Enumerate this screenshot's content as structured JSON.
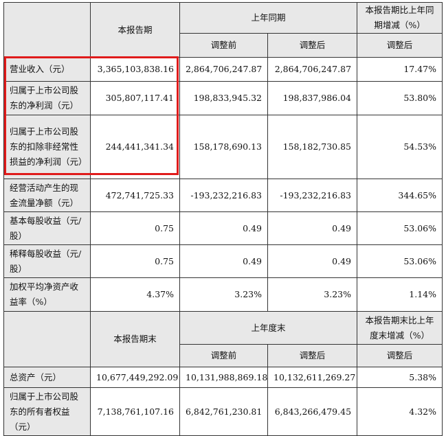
{
  "section1": {
    "headers": {
      "current": "本报告期",
      "prior_group": "上年同期",
      "change_group": "本报告期比上年同期增减（%）",
      "before_adj": "调整前",
      "after_adj": "调整后",
      "change_sub": "调整后"
    },
    "rows": [
      {
        "label": "营业收入（元）",
        "current": "3,365,103,838.16",
        "before": "2,864,706,247.87",
        "after": "2,864,706,247.87",
        "change": "17.47%"
      },
      {
        "label": "归属于上市公司股东的净利润（元）",
        "current": "305,807,117.41",
        "before": "198,833,945.32",
        "after": "198,837,986.04",
        "change": "53.80%"
      },
      {
        "label": "归属于上市公司股东的扣除非经常性损益的净利润（元）",
        "current": "244,441,341.34",
        "before": "158,178,690.13",
        "after": "158,182,730.85",
        "change": "54.53%"
      },
      {
        "label": "经营活动产生的现金流量净额（元）",
        "current": "472,741,725.33",
        "before": "-193,232,216.83",
        "after": "-193,232,216.83",
        "change": "344.65%"
      },
      {
        "label": "基本每股收益（元/股）",
        "current": "0.75",
        "before": "0.49",
        "after": "0.49",
        "change": "53.06%"
      },
      {
        "label": "稀释每股收益（元/股）",
        "current": "0.75",
        "before": "0.49",
        "after": "0.49",
        "change": "53.06%"
      },
      {
        "label": "加权平均净资产收益率（%）",
        "current": "4.37%",
        "before": "3.23%",
        "after": "3.23%",
        "change": "1.14%"
      }
    ]
  },
  "section2": {
    "headers": {
      "current": "本报告期末",
      "prior_group": "上年度末",
      "change_group": "本报告期末比上年度末增减（%）",
      "before_adj": "调整前",
      "after_adj": "调整后",
      "change_sub": "调整后"
    },
    "rows": [
      {
        "label": "总资产（元）",
        "current": "10,677,449,292.09",
        "before": "10,131,988,869.18",
        "after": "10,132,611,269.27",
        "change": "5.38%"
      },
      {
        "label": "归属于上市公司股东的所有者权益（元）",
        "current": "7,138,761,107.16",
        "before": "6,842,761,230.81",
        "after": "6,843,266,479.45",
        "change": "4.32%"
      }
    ]
  },
  "highlight_color": "#e01b1b"
}
